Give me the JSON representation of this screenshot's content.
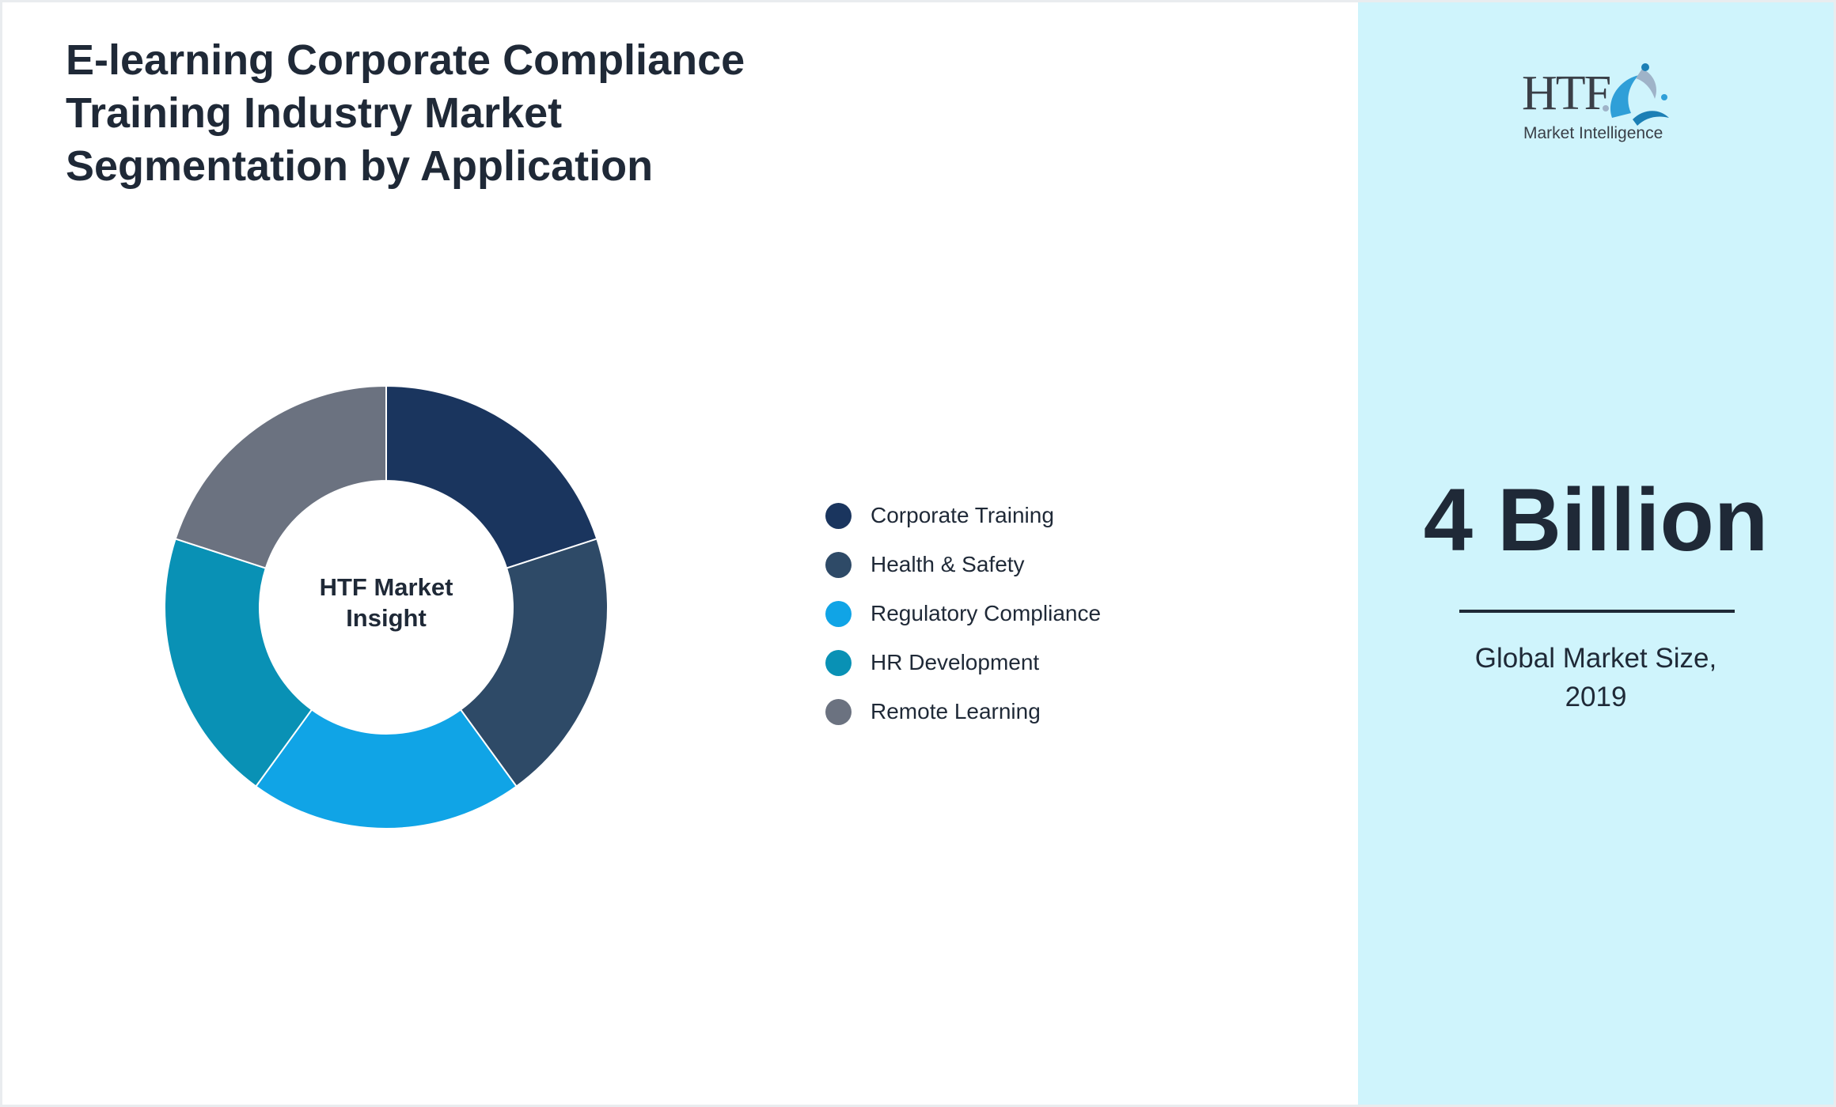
{
  "header": {
    "title": "E-learning Corporate Compliance\nTraining Industry Market\nSegmentation by Application"
  },
  "chart_data": {
    "type": "pie",
    "variant": "donut",
    "center_label": "HTF Market\nInsight",
    "categories": [
      "Corporate Training",
      "Health & Safety",
      "Regulatory Compliance",
      "HR Development",
      "Remote Learning"
    ],
    "values": [
      20,
      20,
      20,
      20,
      20
    ],
    "colors": [
      "#1a355e",
      "#2e4a67",
      "#10a4e6",
      "#0991b5",
      "#6b7280"
    ],
    "legend_position": "right"
  },
  "brand": {
    "logo_letters": "HTF",
    "logo_tagline": "Market Intelligence",
    "logo_colors": [
      "#3a3f47",
      "#2f9fd8",
      "#1b7fb5",
      "#9fb3c8"
    ]
  },
  "highlight": {
    "value": "4 Billion",
    "caption": "Global Market Size,\n2019"
  }
}
